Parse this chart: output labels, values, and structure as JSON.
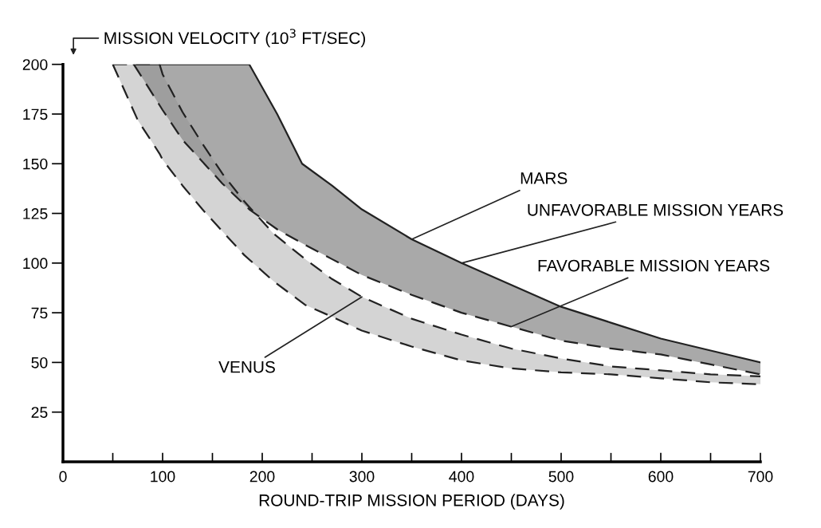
{
  "chart_data": {
    "type": "line",
    "xlabel": "ROUND-TRIP MISSION PERIOD (DAYS)",
    "ylabel": "MISSION VELOCITY (10$^{3}$ FT/SEC)",
    "xlim": [
      0,
      700
    ],
    "ylim": [
      0,
      200
    ],
    "xticks": [
      {
        "value": 0,
        "label": "0"
      },
      {
        "value": 50,
        "label": null
      },
      100,
      {
        "value": 150,
        "label": null
      },
      200,
      {
        "value": 250,
        "label": null
      },
      300,
      {
        "value": 350,
        "label": null
      },
      400,
      {
        "value": 450,
        "label": null
      },
      500,
      {
        "value": 550,
        "label": null
      },
      600,
      {
        "value": 650,
        "label": null
      },
      700
    ],
    "yticks": [
      25,
      50,
      75,
      100,
      125,
      150,
      175,
      200
    ],
    "grid": false,
    "legend": false,
    "series": [
      {
        "color": "#222222",
        "line_style": "dashed",
        "x": [
          50,
          75,
          97,
          100,
          120,
          140,
          160,
          182,
          211,
          243,
          270,
          300,
          350,
          400,
          450,
          500,
          550,
          600,
          650,
          700
        ],
        "values": [
          200,
          172,
          155,
          152,
          139,
          127,
          116,
          104,
          91,
          79,
          73,
          66,
          58,
          51,
          47,
          45,
          44,
          42,
          40,
          39
        ]
      },
      {
        "color": "#222222",
        "line_style": "dashed",
        "x": [
          50,
          75,
          97,
          100,
          120,
          140,
          160,
          182,
          211,
          243,
          270,
          300,
          350,
          400,
          450,
          500,
          550,
          600,
          650,
          700
        ],
        "values": [
          200,
          200,
          200,
          195,
          176,
          160,
          145,
          131,
          115,
          102,
          92,
          83,
          72,
          64,
          57,
          52,
          48,
          46,
          44,
          43
        ]
      },
      {
        "color": "#222222",
        "line_style": "dashed",
        "x": [
          71,
          85,
          100,
          120,
          140,
          160,
          187,
          215,
          240,
          270,
          300,
          350,
          400,
          450,
          500,
          550,
          600,
          650,
          700
        ],
        "values": [
          200,
          189,
          177,
          162,
          151,
          140,
          127,
          117,
          110,
          102,
          94,
          84,
          75,
          68,
          61,
          57,
          54,
          49,
          44
        ]
      },
      {
        "color": "#222222",
        "line_style": "solid",
        "x": [
          71,
          85,
          100,
          120,
          140,
          160,
          187,
          215,
          240,
          270,
          300,
          350,
          400,
          450,
          500,
          550,
          600,
          650,
          700
        ],
        "values": [
          200,
          200,
          200,
          200,
          200,
          200,
          200,
          175,
          150,
          139,
          127,
          112,
          100,
          89,
          78,
          70,
          62,
          56,
          50
        ]
      }
    ],
    "annotations": [
      {
        "text": "MARS",
        "x": 350,
        "y": 112
      },
      {
        "text": "UNFAVORABLE MISSION YEARS",
        "x": 400,
        "y": 100
      },
      {
        "text": "FAVORABLE MISSION YEARS",
        "x": 450,
        "y": 68
      },
      {
        "text": "VENUS",
        "x": 300,
        "y": 83
      }
    ]
  }
}
